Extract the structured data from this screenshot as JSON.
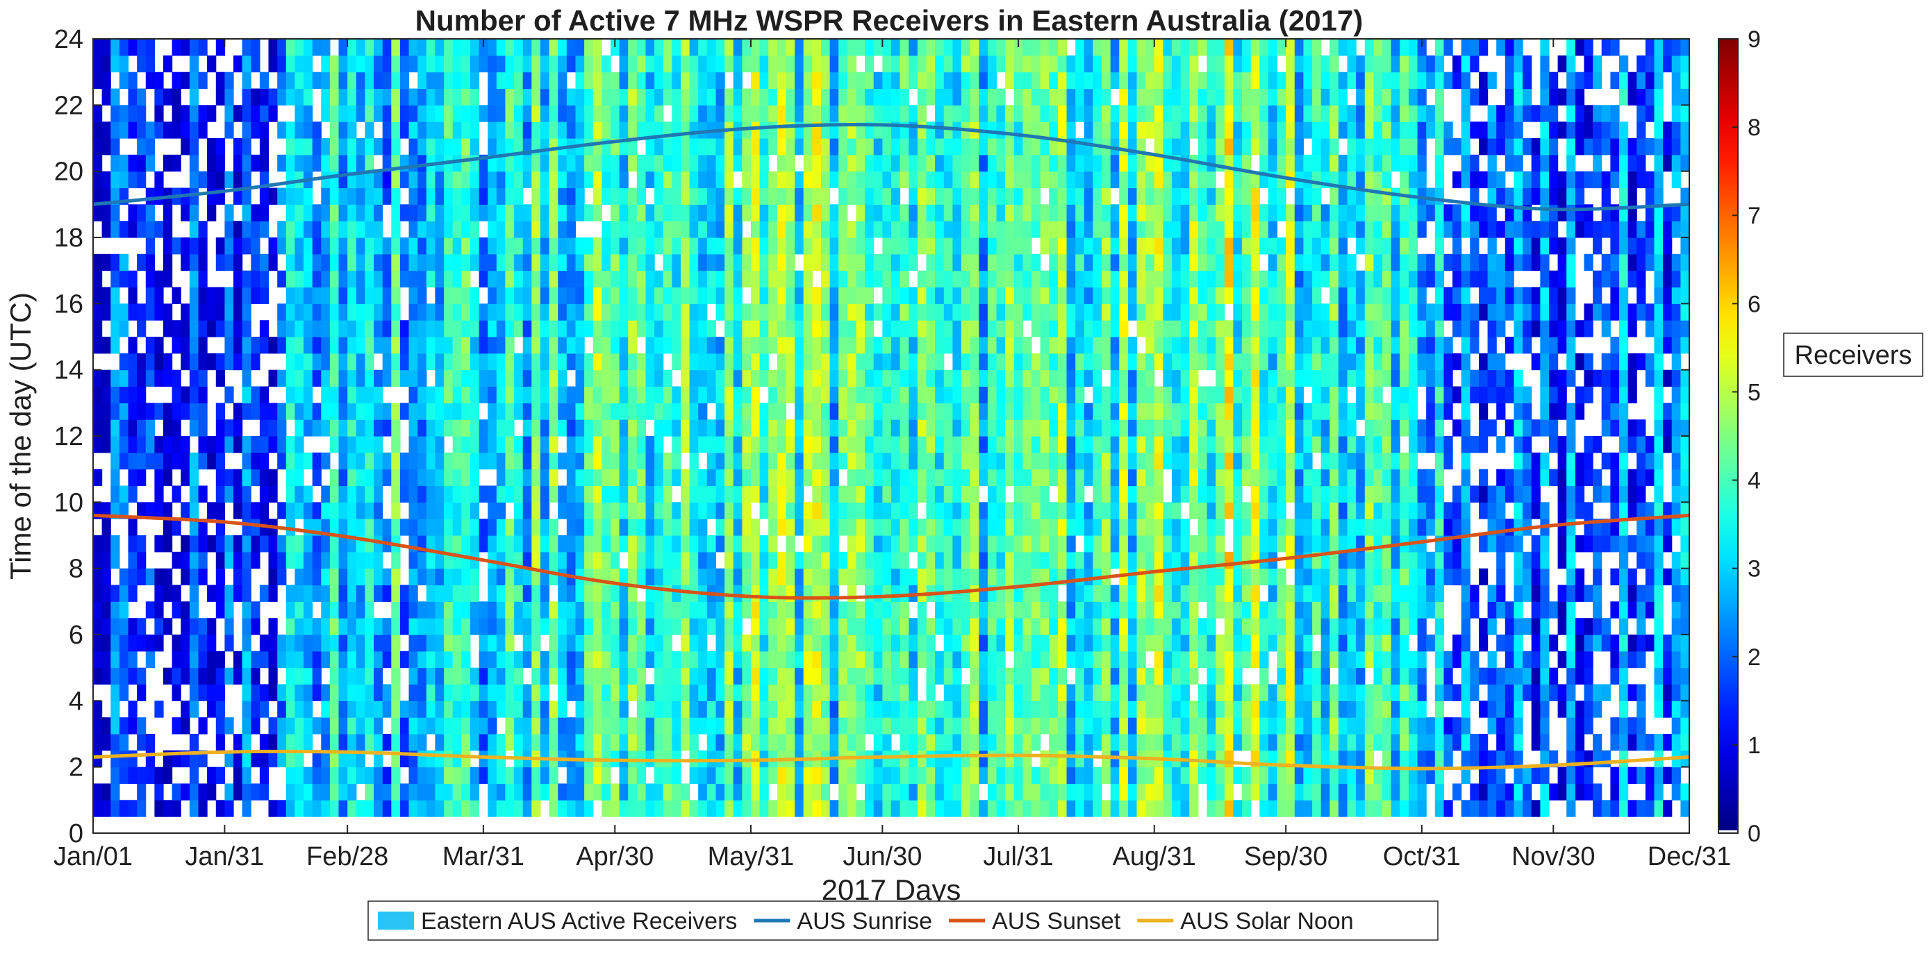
{
  "chart_data": {
    "type": "heatmap",
    "title": "Number of Active 7 MHz WSPR Receivers in Eastern Australia (2017)",
    "xlabel": "2017 Days",
    "ylabel": "Time of the day (UTC)",
    "x_tick_labels": [
      "Jan/01",
      "Jan/31",
      "Feb/28",
      "Mar/31",
      "Apr/30",
      "May/31",
      "Jun/30",
      "Jul/31",
      "Aug/31",
      "Sep/30",
      "Oct/31",
      "Nov/30",
      "Dec/31"
    ],
    "x_tick_days": [
      1,
      31,
      59,
      90,
      120,
      151,
      181,
      212,
      243,
      273,
      304,
      334,
      365
    ],
    "xlim": [
      1,
      365
    ],
    "y_ticks": [
      0,
      2,
      4,
      6,
      8,
      10,
      12,
      14,
      16,
      18,
      20,
      22,
      24
    ],
    "ylim": [
      0,
      24
    ],
    "grid": false,
    "colorbar": {
      "label": "Receivers",
      "min": 0,
      "max": 9,
      "ticks": [
        0,
        1,
        2,
        3,
        4,
        5,
        6,
        7,
        8,
        9
      ],
      "colormap": "jet"
    },
    "heatmap_data_window_hours": [
      0.5,
      24
    ],
    "daily_mean_receivers": [
      {
        "day": 1,
        "value": 1.2
      },
      {
        "day": 15,
        "value": 1.5
      },
      {
        "day": 31,
        "value": 1.6
      },
      {
        "day": 45,
        "value": 2.4
      },
      {
        "day": 59,
        "value": 2.8
      },
      {
        "day": 75,
        "value": 3.2
      },
      {
        "day": 90,
        "value": 3.4
      },
      {
        "day": 105,
        "value": 3.6
      },
      {
        "day": 120,
        "value": 3.8
      },
      {
        "day": 135,
        "value": 3.9
      },
      {
        "day": 151,
        "value": 4.2
      },
      {
        "day": 165,
        "value": 3.9
      },
      {
        "day": 181,
        "value": 3.5
      },
      {
        "day": 195,
        "value": 3.4
      },
      {
        "day": 212,
        "value": 3.6
      },
      {
        "day": 228,
        "value": 3.8
      },
      {
        "day": 243,
        "value": 4.1
      },
      {
        "day": 258,
        "value": 4.6
      },
      {
        "day": 273,
        "value": 3.9
      },
      {
        "day": 290,
        "value": 3.4
      },
      {
        "day": 304,
        "value": 3.0
      },
      {
        "day": 320,
        "value": 2.0
      },
      {
        "day": 334,
        "value": 1.6
      },
      {
        "day": 350,
        "value": 2.0
      },
      {
        "day": 365,
        "value": 2.4
      }
    ],
    "series": [
      {
        "name": "AUS Sunrise",
        "color": "#1f77b4",
        "x": [
          1,
          31,
          59,
          90,
          120,
          151,
          181,
          212,
          243,
          273,
          304,
          334,
          365
        ],
        "y": [
          19.0,
          19.4,
          19.9,
          20.4,
          20.9,
          21.3,
          21.4,
          21.1,
          20.5,
          19.8,
          19.2,
          18.85,
          19.0
        ]
      },
      {
        "name": "AUS Sunset",
        "color": "#d95319",
        "x": [
          1,
          31,
          59,
          90,
          120,
          151,
          181,
          212,
          243,
          273,
          304,
          334,
          365
        ],
        "y": [
          9.6,
          9.4,
          8.95,
          8.25,
          7.55,
          7.15,
          7.15,
          7.45,
          7.9,
          8.3,
          8.8,
          9.3,
          9.6
        ]
      },
      {
        "name": "AUS Solar Noon",
        "color": "#edb120",
        "x": [
          1,
          31,
          59,
          90,
          120,
          151,
          181,
          212,
          243,
          273,
          304,
          334,
          365
        ],
        "y": [
          2.3,
          2.45,
          2.45,
          2.3,
          2.2,
          2.2,
          2.3,
          2.35,
          2.25,
          2.05,
          1.95,
          2.05,
          2.3
        ]
      }
    ],
    "legend": {
      "placement": "bottom",
      "entries": [
        "Eastern AUS Active Receivers",
        "AUS Sunrise",
        "AUS Sunset",
        "AUS Solar Noon"
      ],
      "heatmap_swatch_color": "#29c3f5"
    }
  }
}
